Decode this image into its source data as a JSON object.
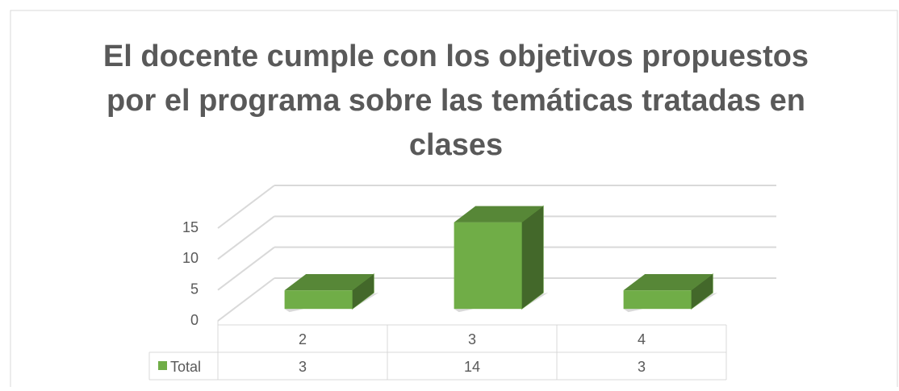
{
  "chart_data": {
    "type": "bar3d",
    "title": [
      "El docente cumple con los objetivos propuestos",
      "por el programa sobre las temáticas tratadas en",
      "clases"
    ],
    "categories": [
      "2",
      "3",
      "4"
    ],
    "series": [
      {
        "name": "Total",
        "color": "#70ad47",
        "values": [
          3,
          14,
          3
        ]
      }
    ],
    "ylim": [
      0,
      15
    ],
    "yticks": [
      0,
      5,
      10,
      15
    ],
    "grid": true
  }
}
